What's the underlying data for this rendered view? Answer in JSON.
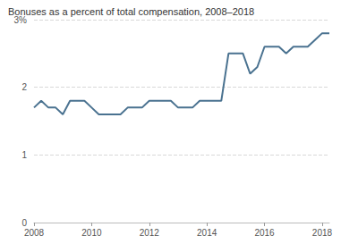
{
  "chart_data": {
    "type": "line",
    "title": "Bonuses as a percent of total compensation, 2008–2018",
    "x": [
      2008,
      2008.25,
      2008.5,
      2008.75,
      2009,
      2009.25,
      2009.5,
      2009.75,
      2010,
      2010.25,
      2010.5,
      2010.75,
      2011,
      2011.25,
      2011.5,
      2011.75,
      2012,
      2012.25,
      2012.5,
      2012.75,
      2013,
      2013.25,
      2013.5,
      2013.75,
      2014,
      2014.25,
      2014.5,
      2014.75,
      2015,
      2015.25,
      2015.5,
      2015.75,
      2016,
      2016.25,
      2016.5,
      2016.75,
      2017,
      2017.25,
      2017.5,
      2017.75,
      2018,
      2018.25
    ],
    "values": [
      1.7,
      1.8,
      1.7,
      1.7,
      1.6,
      1.8,
      1.8,
      1.8,
      1.7,
      1.6,
      1.6,
      1.6,
      1.6,
      1.7,
      1.7,
      1.7,
      1.8,
      1.8,
      1.8,
      1.8,
      1.7,
      1.7,
      1.7,
      1.8,
      1.8,
      1.8,
      1.8,
      2.5,
      2.5,
      2.5,
      2.2,
      2.3,
      2.6,
      2.6,
      2.6,
      2.5,
      2.6,
      2.6,
      2.6,
      2.7,
      2.8,
      2.8
    ],
    "color": "#4a7290",
    "xlim": [
      2008,
      2018.25
    ],
    "xticks": [
      2008,
      2010,
      2012,
      2014,
      2016,
      2018
    ],
    "ylim": [
      0,
      3
    ],
    "yticks": [
      0,
      1,
      2,
      {
        "value": 3,
        "label": "3%"
      }
    ],
    "grid": true
  }
}
